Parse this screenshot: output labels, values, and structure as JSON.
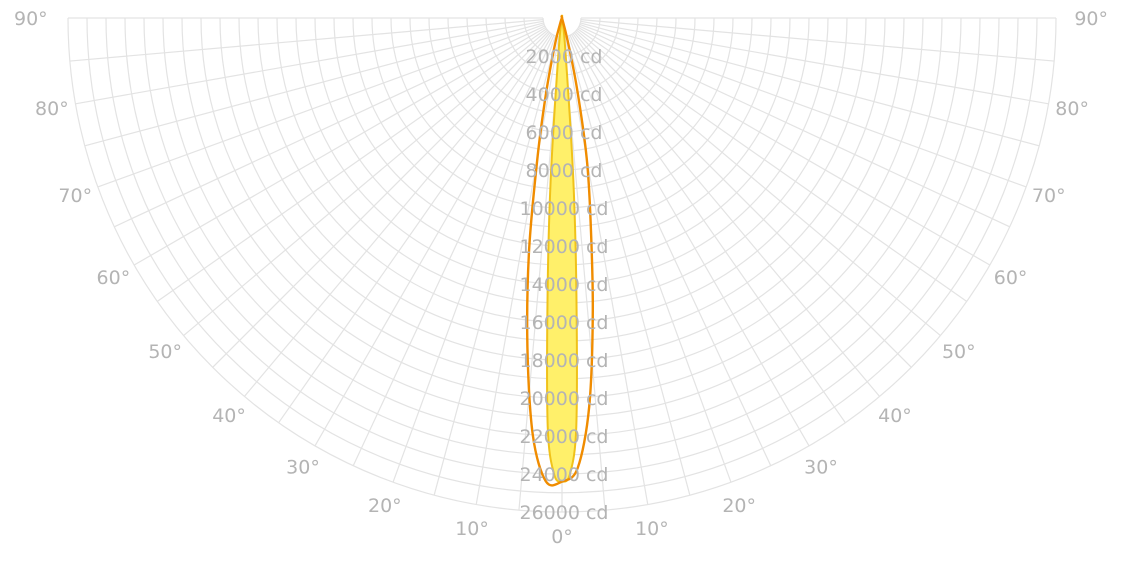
{
  "chart_data": {
    "type": "polar",
    "title": "",
    "unit": "cd",
    "colors": {
      "planeA_stroke": "#f08c00",
      "planeB_fill": "#fff06a",
      "planeB_stroke": "#f0c21a",
      "grid": "#e3e3e3",
      "labels": "#b4b4b4"
    },
    "angular_axis": {
      "range_deg": [
        -90,
        90
      ],
      "ticks_deg": [
        0,
        10,
        20,
        30,
        40,
        50,
        60,
        70,
        80,
        90
      ],
      "labels": [
        "0°",
        "10°",
        "20°",
        "30°",
        "40°",
        "50°",
        "60°",
        "70°",
        "80°",
        "90°"
      ]
    },
    "radial_axis": {
      "range": [
        0,
        26000
      ],
      "ticks": [
        2000,
        4000,
        6000,
        8000,
        10000,
        12000,
        14000,
        16000,
        18000,
        20000,
        22000,
        24000,
        26000
      ],
      "labels": [
        "2000 cd",
        "4000 cd",
        "6000 cd",
        "8000 cd",
        "10000 cd",
        "12000 cd",
        "14000 cd",
        "16000 cd",
        "18000 cd",
        "20000 cd",
        "22000 cd",
        "24000 cd",
        "26000 cd"
      ]
    },
    "series": [
      {
        "role": "wide-plane",
        "angles_deg": [
          -90,
          -30,
          -20,
          -15,
          -12,
          -10,
          -8,
          -6,
          -4,
          -2,
          0,
          2,
          4,
          6,
          8,
          10,
          12,
          14,
          18,
          90
        ],
        "values": [
          0,
          0,
          200,
          1400,
          4000,
          7400,
          12500,
          17400,
          22000,
          24400,
          24400,
          23700,
          20500,
          15500,
          10800,
          7500,
          3800,
          1200,
          0,
          0
        ]
      },
      {
        "role": "narrow-plane",
        "angles_deg": [
          -90,
          -8,
          -6,
          -4,
          -3,
          -2,
          -1,
          0,
          1,
          2,
          3,
          4,
          6,
          8,
          90
        ],
        "values": [
          0,
          0,
          1600,
          8500,
          14500,
          21500,
          24000,
          24400,
          24000,
          21500,
          14500,
          8500,
          1600,
          0,
          0
        ]
      }
    ]
  }
}
